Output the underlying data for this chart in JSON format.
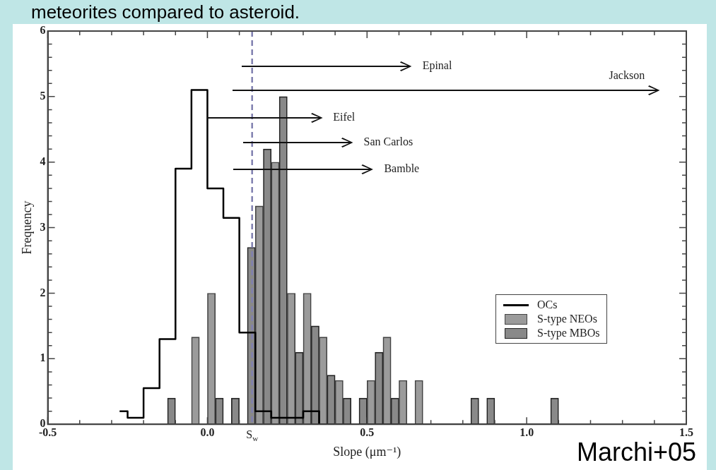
{
  "chart_data": {
    "type": "bar",
    "title": "meteorites compared to asteroid.",
    "xlabel": "Slope (μm⁻¹)",
    "ylabel": "Frequency",
    "x": [
      -0.275,
      -0.225,
      -0.175,
      -0.125,
      -0.075,
      -0.025,
      0.025,
      0.075,
      0.125,
      0.175,
      0.225,
      0.275,
      0.325,
      0.375,
      0.425,
      0.475,
      0.525,
      0.575,
      0.625,
      0.675,
      0.725,
      0.775,
      0.825,
      0.875,
      0.925,
      0.975,
      1.025,
      1.075
    ],
    "series": [
      {
        "name": "OCs",
        "type": "step",
        "color": "#000000",
        "values": [
          0.2,
          0.1,
          0.55,
          1.3,
          3.9,
          5.1,
          3.6,
          3.15,
          1.4,
          0.2,
          0.1,
          0.1,
          0.2,
          0,
          0,
          0,
          0,
          0,
          0,
          0,
          0,
          0,
          0,
          0,
          0,
          0,
          0,
          0
        ]
      },
      {
        "name": "S-type NEOs",
        "color": "#444444",
        "values": [
          0,
          0,
          0,
          0,
          0,
          1.33,
          2,
          0,
          0,
          3.33,
          4,
          2,
          2,
          1.33,
          0.67,
          0,
          0.67,
          1.33,
          0.67,
          0.67,
          0,
          0,
          0,
          0,
          0,
          0,
          0,
          0
        ]
      },
      {
        "name": "S-type MBOs",
        "color": "#222222",
        "values": [
          0,
          0,
          0,
          0.4,
          0,
          0,
          0.4,
          0.4,
          2.7,
          4.2,
          5,
          1.1,
          1.5,
          0.75,
          0.4,
          0.4,
          1.1,
          0.4,
          0,
          0,
          0,
          0,
          0.4,
          0.4,
          0,
          0,
          0,
          0.4
        ]
      }
    ],
    "xlim": [
      -0.5,
      1.5
    ],
    "xticks": [
      -0.5,
      {
        "value": -0.4,
        "label": null
      },
      {
        "value": -0.3,
        "label": null
      },
      {
        "value": -0.2,
        "label": null
      },
      {
        "value": -0.1,
        "label": null
      },
      {
        "value": 0,
        "label": "0.0"
      },
      {
        "value": 0.1,
        "label": null
      },
      {
        "value": 0.2,
        "label": null
      },
      {
        "value": 0.3,
        "label": null
      },
      {
        "value": 0.4,
        "label": null
      },
      0.5,
      {
        "value": 0.6,
        "label": null
      },
      {
        "value": 0.7,
        "label": null
      },
      {
        "value": 0.8,
        "label": null
      },
      {
        "value": 0.9,
        "label": null
      },
      {
        "value": 1,
        "label": "1.0"
      },
      {
        "value": 1.1,
        "label": null
      },
      {
        "value": 1.2,
        "label": null
      },
      {
        "value": 1.3,
        "label": null
      },
      {
        "value": 1.4,
        "label": null
      },
      1.5
    ],
    "ylim": [
      0,
      6
    ],
    "yticks": [
      0,
      {
        "value": 0.2,
        "label": null
      },
      {
        "value": 0.4,
        "label": null
      },
      {
        "value": 0.6,
        "label": null
      },
      {
        "value": 0.8,
        "label": null
      },
      1,
      {
        "value": 1.2,
        "label": null
      },
      {
        "value": 1.4,
        "label": null
      },
      {
        "value": 1.6,
        "label": null
      },
      {
        "value": 1.8,
        "label": null
      },
      2,
      {
        "value": 2.2,
        "label": null
      },
      {
        "value": 2.4,
        "label": null
      },
      {
        "value": 2.6,
        "label": null
      },
      {
        "value": 2.8,
        "label": null
      },
      3,
      {
        "value": 3.2,
        "label": null
      },
      {
        "value": 3.4,
        "label": null
      },
      {
        "value": 3.6,
        "label": null
      },
      {
        "value": 3.8,
        "label": null
      },
      4,
      {
        "value": 4.2,
        "label": null
      },
      {
        "value": 4.4,
        "label": null
      },
      {
        "value": 4.6,
        "label": null
      },
      {
        "value": 4.8,
        "label": null
      },
      5,
      {
        "value": 5.2,
        "label": null
      },
      {
        "value": 5.4,
        "label": null
      },
      {
        "value": 5.6,
        "label": null
      },
      {
        "value": 5.8,
        "label": null
      },
      6
    ],
    "ref_lines": [
      {
        "axis": "x",
        "value": 0.14,
        "label": "S$_{w}$",
        "color": "#8080b0",
        "line_style": "dashed"
      }
    ],
    "annotations": [
      "Epinal",
      "Jackson",
      "Eifel",
      "San Carlos",
      "Bamble",
      "Marchi+05"
    ],
    "legend": "bottom right",
    "grid": false
  }
}
